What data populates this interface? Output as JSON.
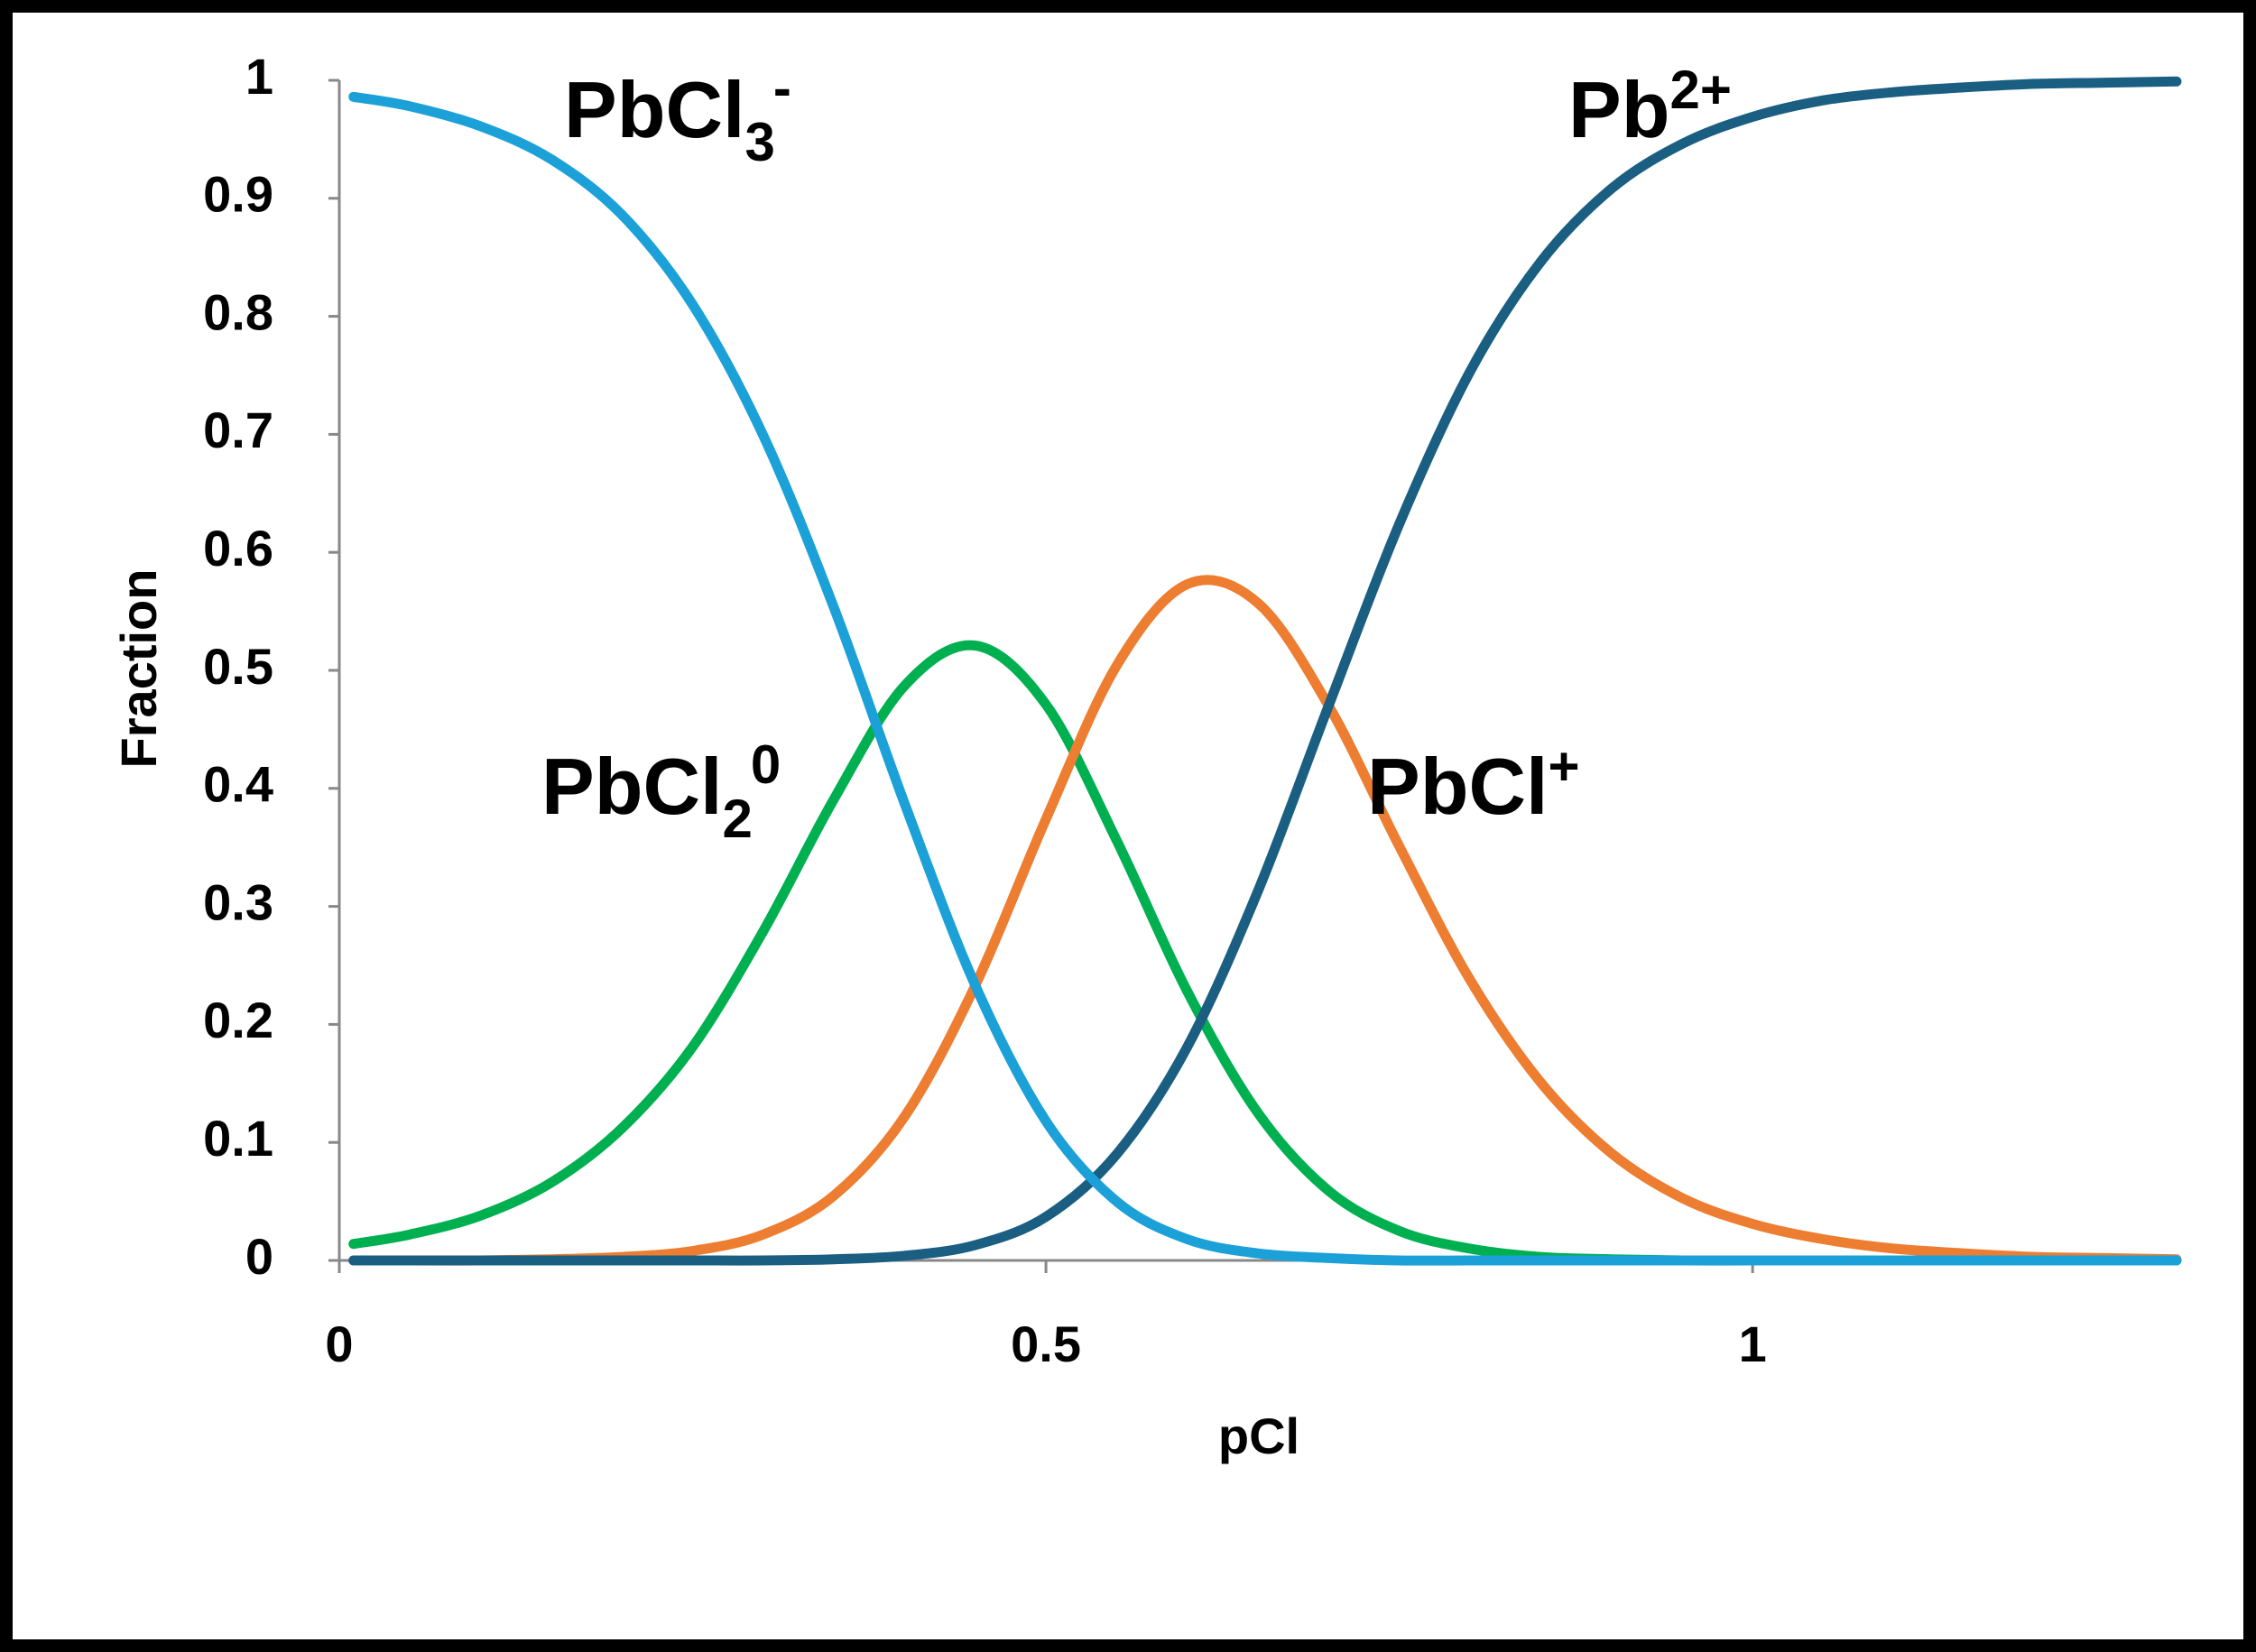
{
  "chart_data": {
    "type": "line",
    "x_label": "pCl",
    "y_label": "Fraction",
    "x": [
      0.01,
      0.05,
      0.1,
      0.15,
      0.2,
      0.25,
      0.3,
      0.35,
      0.4,
      0.45,
      0.5,
      0.55,
      0.6,
      0.65,
      0.7,
      0.75,
      0.8,
      0.85,
      0.9,
      0.95,
      1.0,
      1.05,
      1.1,
      1.15,
      1.2,
      1.25,
      1.3
    ],
    "series": [
      {
        "label": {
          "text": "PbCl",
          "sub": "3",
          "sup": "-"
        },
        "color": "#1ba1d8",
        "values": [
          0.986,
          0.978,
          0.961,
          0.933,
          0.886,
          0.81,
          0.699,
          0.553,
          0.387,
          0.233,
          0.118,
          0.05,
          0.018,
          0.006,
          0.002,
          0,
          0,
          0,
          0,
          0,
          0,
          0,
          0,
          0,
          0,
          0,
          0
        ]
      },
      {
        "label": {
          "text": "PbCl",
          "sub": "2",
          "sup": "0"
        },
        "color": "#00b050",
        "values": [
          0.014,
          0.022,
          0.038,
          0.066,
          0.112,
          0.181,
          0.279,
          0.391,
          0.487,
          0.521,
          0.471,
          0.356,
          0.228,
          0.125,
          0.059,
          0.025,
          0.01,
          0.003,
          0.001,
          0,
          0,
          0,
          0,
          0,
          0,
          0,
          0
        ]
      },
      {
        "label": {
          "text": "PbCl",
          "sup": "+"
        },
        "color": "#ed7d31",
        "values": [
          0,
          0,
          0,
          0.001,
          0.003,
          0.008,
          0.022,
          0.055,
          0.122,
          0.233,
          0.374,
          0.504,
          0.573,
          0.557,
          0.47,
          0.351,
          0.238,
          0.151,
          0.091,
          0.053,
          0.031,
          0.018,
          0.01,
          0.006,
          0.003,
          0.002,
          0.001
        ]
      },
      {
        "label": {
          "text": "Pb",
          "sup": "2+"
        },
        "color": "#1a5e82",
        "values": [
          0,
          0,
          0,
          0,
          0,
          0,
          0,
          0.001,
          0.004,
          0.013,
          0.037,
          0.09,
          0.181,
          0.313,
          0.47,
          0.624,
          0.753,
          0.846,
          0.908,
          0.946,
          0.969,
          0.983,
          0.99,
          0.994,
          0.997,
          0.998,
          0.999
        ]
      }
    ],
    "xlim": [
      0,
      1.3
    ],
    "xticks": [
      0,
      0.5,
      1
    ],
    "ylim": [
      0,
      1
    ],
    "yticks": [
      0,
      0.1,
      0.2,
      0.3,
      0.4,
      0.5,
      0.6,
      0.7,
      0.8,
      0.9,
      1
    ],
    "grid": false
  }
}
